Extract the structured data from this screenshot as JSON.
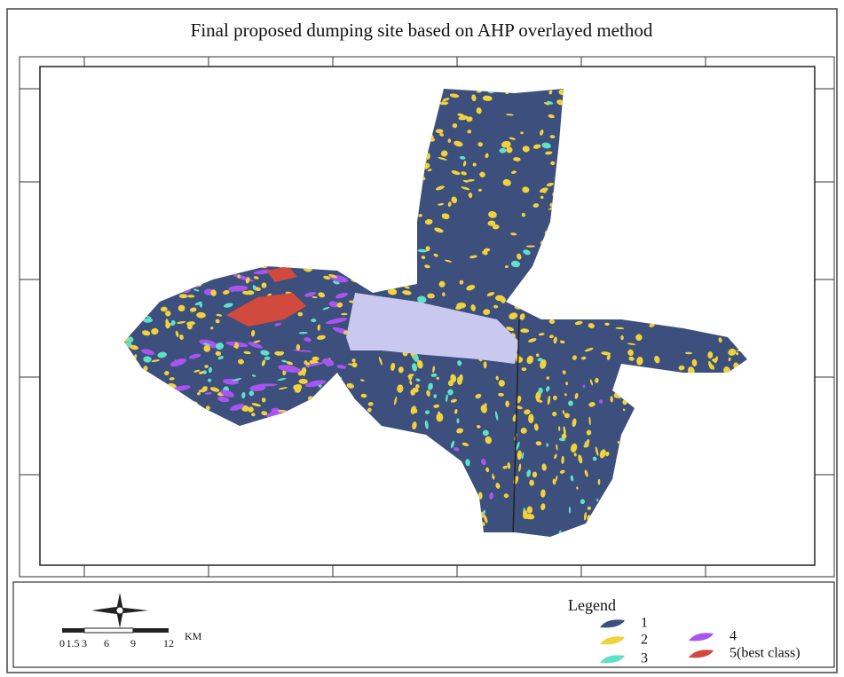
{
  "title": "Final proposed dumping site based on AHP overlayed method",
  "legend": {
    "title": "Legend",
    "items": [
      {
        "label": "1",
        "color": "#3d4f7c"
      },
      {
        "label": "2",
        "color": "#f2d23a"
      },
      {
        "label": "3",
        "color": "#5fe0c8"
      },
      {
        "label": "4",
        "color": "#a855f0"
      },
      {
        "label": "5(best class)",
        "color": "#d24a3e"
      }
    ]
  },
  "scale_bar": {
    "labels": [
      "0",
      "1.5",
      "3",
      "6",
      "9",
      "12"
    ],
    "unit": "KM"
  }
}
